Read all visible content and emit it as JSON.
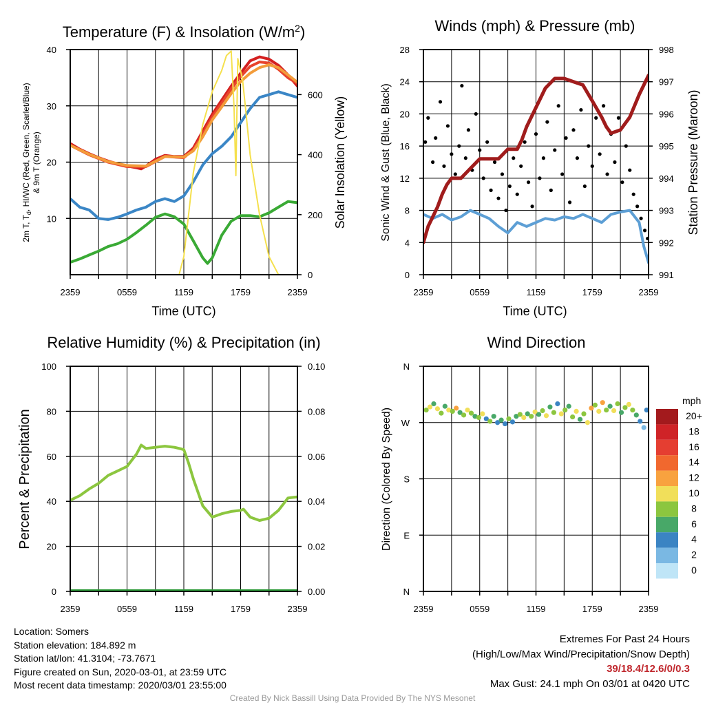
{
  "colors": {
    "temp_red": "#d42020",
    "temp_orange": "#f39c3a",
    "dewpoint_blue": "#3a86c6",
    "temp_green": "#3aaa35",
    "insolation_yellow": "#f5e04d",
    "rh_green": "#8cc63f",
    "precip_green": "#2e9b3a",
    "sustained_wind_blue": "#5d9fd5",
    "gust_black": "#000000",
    "pressure_maroon": "#a01c1c"
  },
  "chart_data": [
    {
      "id": "temp",
      "type": "line",
      "title": "Temperature (F) & Insolation (W/m",
      "title_sup": "2",
      "title_close": ")",
      "xlabel": "Time (UTC)",
      "ylabel_left_1": "2m T, T",
      "ylabel_left_sub": "d",
      "ylabel_left_2": ", HI/WC (Red, Green, Scarlet/Blue)",
      "ylabel_left_3": "& 9m T (Orange)",
      "ylabel_right": "Solar Insolation (Yellow)",
      "x_ticks": [
        "2359",
        "0559",
        "1159",
        "1759",
        "2359"
      ],
      "y_ticks_left": [
        "10",
        "20",
        "30",
        "40"
      ],
      "y_ticks_right": [
        "0",
        "200",
        "400",
        "600"
      ],
      "ylim_left": [
        0,
        40
      ],
      "ylim_right": [
        0,
        750
      ],
      "xlim": [
        0,
        24
      ],
      "grid": true,
      "series": [
        {
          "name": "2m Temperature (Red)",
          "color": "#d42020",
          "axis": "left",
          "x": [
            0,
            1,
            2,
            3,
            4,
            5,
            6,
            7,
            7.5,
            8,
            9,
            10,
            11,
            12,
            13,
            14,
            15,
            16,
            17,
            18,
            19,
            20,
            21,
            22,
            23,
            24
          ],
          "y": [
            23.3,
            22.3,
            21.5,
            20.8,
            20.2,
            19.7,
            19.3,
            19.0,
            18.8,
            19.3,
            20.5,
            21.2,
            21.0,
            21.0,
            22.5,
            25.5,
            28.5,
            31.0,
            33.5,
            35.8,
            38.0,
            38.7,
            38.3,
            37.2,
            35.5,
            33.5
          ]
        },
        {
          "name": "Heat Index / Wind Chill (Scarlet)",
          "color": "#e8442c",
          "axis": "left",
          "x": [
            0,
            2,
            4,
            6,
            8,
            10,
            12,
            13,
            14,
            15,
            16,
            17,
            18,
            19,
            20,
            21,
            22,
            23,
            24
          ],
          "y": [
            23.0,
            21.3,
            20.0,
            19.2,
            19.2,
            21.0,
            20.8,
            22.2,
            25.0,
            28.0,
            30.5,
            33.0,
            35.2,
            37.0,
            37.8,
            37.6,
            36.5,
            35.0,
            34.0
          ]
        },
        {
          "name": "9m Temperature (Orange)",
          "color": "#f39c3a",
          "axis": "left",
          "x": [
            0,
            2,
            4,
            6,
            8,
            10,
            12,
            13,
            14,
            15,
            16,
            17,
            18,
            19,
            20,
            21,
            22,
            23,
            24
          ],
          "y": [
            23.0,
            21.4,
            20.1,
            19.4,
            19.3,
            21.0,
            20.9,
            22.0,
            24.5,
            27.5,
            29.8,
            32.2,
            34.3,
            35.8,
            36.8,
            37.3,
            36.8,
            35.5,
            34.2
          ]
        },
        {
          "name": "Wind Chill (Blue)",
          "color": "#3a86c6",
          "axis": "left",
          "x": [
            0,
            1,
            2,
            3,
            4,
            5,
            6,
            7,
            8,
            9,
            10,
            11,
            12,
            13,
            14,
            15,
            16,
            17,
            18,
            19,
            20,
            21,
            22,
            23,
            24
          ],
          "y": [
            13.5,
            12.0,
            11.5,
            10.0,
            9.8,
            10.2,
            10.8,
            11.5,
            12.0,
            13.0,
            13.5,
            13.0,
            14.0,
            16.5,
            19.5,
            21.5,
            22.8,
            24.5,
            27.0,
            29.5,
            31.5,
            32.0,
            32.5,
            32.0,
            31.5
          ]
        },
        {
          "name": "Dewpoint (Green)",
          "color": "#3aaa35",
          "axis": "left",
          "x": [
            0,
            1,
            2,
            3,
            4,
            5,
            6,
            7,
            8,
            9,
            10,
            11,
            12,
            13,
            14,
            14.5,
            15,
            16,
            17,
            18,
            19,
            20,
            21,
            22,
            23,
            24
          ],
          "y": [
            2.2,
            2.8,
            3.5,
            4.2,
            5.0,
            5.5,
            6.3,
            7.5,
            8.8,
            10.2,
            10.8,
            10.3,
            9.0,
            6.0,
            3.0,
            2.0,
            3.0,
            7.0,
            9.5,
            10.5,
            10.5,
            10.3,
            11.0,
            12.0,
            13.0,
            12.8
          ]
        },
        {
          "name": "Solar Insolation (Yellow)",
          "color": "#f5e04d",
          "axis": "right",
          "x": [
            0,
            11.5,
            12,
            12.5,
            13,
            14,
            15,
            16,
            16.5,
            17,
            17.3,
            17.5,
            17.7,
            18.2,
            18.5,
            19,
            20,
            21,
            22,
            24
          ],
          "y": [
            0,
            0,
            60,
            200,
            340,
            500,
            610,
            680,
            730,
            745,
            560,
            330,
            720,
            650,
            560,
            400,
            200,
            60,
            0,
            0
          ]
        }
      ]
    },
    {
      "id": "wind",
      "type": "line",
      "title": "Winds (mph) & Pressure (mb)",
      "xlabel": "Time (UTC)",
      "ylabel_left": "Sonic Wind & Gust (Blue, Black)",
      "ylabel_right": "Station Pressure (Maroon)",
      "x_ticks": [
        "2359",
        "0559",
        "1159",
        "1759",
        "2359"
      ],
      "y_ticks_left": [
        "0",
        "4",
        "8",
        "12",
        "16",
        "20",
        "24",
        "28"
      ],
      "y_ticks_right": [
        "991",
        "992",
        "993",
        "994",
        "995",
        "996",
        "997",
        "998"
      ],
      "ylim_left": [
        0,
        28
      ],
      "ylim_right": [
        991,
        998
      ],
      "xlim": [
        0,
        24
      ],
      "grid": true,
      "series": [
        {
          "name": "Sustained Wind (Blue)",
          "color": "#5d9fd5",
          "axis": "left",
          "x": [
            0,
            1,
            2,
            3,
            4,
            5,
            6,
            7,
            8,
            9,
            10,
            11,
            12,
            13,
            14,
            15,
            16,
            17,
            18,
            19,
            20,
            21,
            22,
            23,
            23.5,
            24
          ],
          "y": [
            7.5,
            7.0,
            7.5,
            6.8,
            7.2,
            8.0,
            7.5,
            7.0,
            6.0,
            5.2,
            6.5,
            6.0,
            6.5,
            7.0,
            6.8,
            7.2,
            7.0,
            7.5,
            7.0,
            6.5,
            7.5,
            7.8,
            8.0,
            6.5,
            3.5,
            1.5
          ]
        },
        {
          "name": "Gust (Black)",
          "color": "#000000",
          "axis": "left",
          "kind": "scatter",
          "x": [
            0.2,
            0.5,
            1.0,
            1.3,
            1.8,
            2.2,
            2.6,
            3.0,
            3.4,
            3.8,
            4.1,
            4.5,
            4.8,
            5.2,
            5.6,
            6.0,
            6.4,
            6.8,
            7.2,
            7.6,
            8.0,
            8.4,
            8.8,
            9.2,
            9.6,
            10.0,
            10.4,
            10.8,
            11.2,
            11.6,
            12.0,
            12.4,
            12.8,
            13.2,
            13.6,
            14.0,
            14.4,
            14.8,
            15.2,
            15.6,
            16.0,
            16.4,
            16.8,
            17.2,
            17.6,
            18.0,
            18.4,
            18.8,
            19.2,
            19.6,
            20.0,
            20.4,
            20.8,
            21.2,
            21.6,
            22.0,
            22.4,
            22.8,
            23.2,
            23.6,
            23.9
          ],
          "y": [
            16.5,
            19.5,
            14.0,
            17.0,
            21.5,
            13.5,
            18.5,
            15.0,
            12.5,
            16.0,
            23.5,
            14.5,
            18.0,
            13.0,
            20.0,
            15.5,
            12.0,
            16.5,
            10.5,
            14.0,
            9.5,
            12.5,
            8.0,
            11.0,
            14.5,
            10.0,
            13.5,
            16.5,
            11.5,
            8.5,
            17.5,
            12.0,
            14.5,
            19.0,
            10.5,
            15.5,
            21.0,
            12.5,
            17.0,
            9.0,
            18.0,
            14.5,
            20.5,
            11.0,
            16.0,
            13.5,
            19.5,
            15.0,
            21.0,
            12.5,
            17.5,
            14.0,
            19.5,
            11.5,
            16.0,
            13.0,
            10.0,
            8.5,
            7.0,
            5.5,
            4.5
          ]
        },
        {
          "name": "Station Pressure (Maroon)",
          "color": "#a01c1c",
          "axis": "right",
          "x": [
            0,
            0.5,
            1,
            1.5,
            2,
            2.5,
            3,
            4,
            5,
            6,
            7,
            8,
            9,
            10,
            10.5,
            11,
            12,
            13,
            14,
            15,
            16,
            17,
            18,
            19,
            19.5,
            20,
            21,
            22,
            23,
            24
          ],
          "y": [
            992.0,
            992.5,
            992.8,
            993.1,
            993.5,
            993.8,
            994.0,
            994.0,
            994.3,
            994.6,
            994.6,
            994.6,
            994.9,
            994.9,
            995.2,
            995.6,
            996.2,
            996.8,
            997.1,
            997.1,
            997.0,
            996.9,
            996.4,
            995.9,
            995.6,
            995.4,
            995.5,
            995.9,
            996.6,
            997.2
          ]
        }
      ]
    },
    {
      "id": "rh",
      "type": "line",
      "title": "Relative Humidity (%) & Precipitation (in)",
      "xlabel": "",
      "ylabel_left": "Percent & Precipitation",
      "x_ticks": [
        "2359",
        "0559",
        "1159",
        "1759",
        "2359"
      ],
      "y_ticks_left": [
        "0",
        "20",
        "40",
        "60",
        "80",
        "100"
      ],
      "y_ticks_right": [
        "0.00",
        "0.02",
        "0.04",
        "0.06",
        "0.08",
        "0.10"
      ],
      "ylim_left": [
        0,
        100
      ],
      "ylim_right": [
        0,
        0.1
      ],
      "xlim": [
        0,
        24
      ],
      "grid": true,
      "series": [
        {
          "name": "Relative Humidity",
          "color": "#8cc63f",
          "axis": "left",
          "x": [
            0,
            1,
            2,
            3,
            4,
            5,
            6,
            7,
            7.5,
            8,
            9,
            10,
            11,
            12,
            12.5,
            13,
            14,
            15,
            16,
            17,
            18,
            18.3,
            19,
            20,
            21,
            22,
            23,
            24
          ],
          "y": [
            40.5,
            42.5,
            45.5,
            48.0,
            51.5,
            53.5,
            55.5,
            61.0,
            65.0,
            63.5,
            64.0,
            64.5,
            64.0,
            63.0,
            57.0,
            50.0,
            38.0,
            33.0,
            34.5,
            35.5,
            36.0,
            36.5,
            33.0,
            31.5,
            32.5,
            36.0,
            41.5,
            42.0
          ]
        },
        {
          "name": "Precipitation",
          "color": "#2e9b3a",
          "axis": "right",
          "x": [
            0,
            24
          ],
          "y": [
            0,
            0
          ]
        }
      ]
    },
    {
      "id": "dir",
      "type": "scatter",
      "title": "Wind Direction",
      "xlabel": "",
      "ylabel_left": "Direction (Colored By Speed)",
      "x_ticks": [
        "2359",
        "0559",
        "1159",
        "1759",
        "2359"
      ],
      "y_ticks_left": [
        "N",
        "E",
        "S",
        "W",
        "N"
      ],
      "ylim_left": [
        0,
        360
      ],
      "xlim": [
        0,
        24
      ],
      "grid": true,
      "colorbar": {
        "unit": "mph",
        "labels": [
          "20+",
          "18",
          "16",
          "14",
          "12",
          "10",
          "8",
          "6",
          "4",
          "2",
          "0"
        ],
        "colors": [
          "#a31a1d",
          "#cf2327",
          "#e53e31",
          "#f1682e",
          "#f8a23f",
          "#f1df5a",
          "#8cc63f",
          "#48a868",
          "#3b84c3",
          "#7ab8e3",
          "#bfe5f7"
        ]
      },
      "series": [
        {
          "name": "Direction",
          "kind": "scatter",
          "x": [
            0.3,
            0.7,
            1.1,
            1.5,
            1.9,
            2.3,
            2.7,
            3.1,
            3.5,
            3.9,
            4.3,
            4.7,
            5.1,
            5.5,
            5.9,
            6.3,
            6.7,
            7.1,
            7.5,
            7.9,
            8.3,
            8.7,
            9.1,
            9.5,
            9.9,
            10.3,
            10.7,
            11.1,
            11.5,
            11.9,
            12.3,
            12.7,
            13.1,
            13.5,
            13.9,
            14.3,
            14.7,
            15.1,
            15.5,
            15.9,
            16.3,
            16.7,
            17.1,
            17.5,
            17.9,
            18.3,
            18.7,
            19.1,
            19.5,
            19.9,
            20.3,
            20.7,
            21.1,
            21.5,
            21.9,
            22.3,
            22.7,
            23.1,
            23.5,
            23.8
          ],
          "y": [
            290,
            295,
            300,
            292,
            285,
            296,
            290,
            288,
            293,
            286,
            282,
            290,
            285,
            280,
            278,
            284,
            276,
            272,
            280,
            270,
            274,
            268,
            276,
            271,
            280,
            283,
            278,
            284,
            280,
            287,
            283,
            289,
            281,
            295,
            286,
            300,
            284,
            290,
            296,
            279,
            288,
            275,
            284,
            270,
            293,
            298,
            288,
            302,
            290,
            296,
            289,
            300,
            286,
            294,
            299,
            290,
            282,
            272,
            262,
            290
          ],
          "speed": [
            8,
            10,
            6,
            10,
            8,
            6,
            10,
            8,
            12,
            6,
            8,
            10,
            8,
            6,
            8,
            10,
            4,
            8,
            6,
            4,
            6,
            4,
            8,
            4,
            6,
            8,
            10,
            6,
            8,
            10,
            6,
            8,
            10,
            6,
            8,
            4,
            10,
            8,
            6,
            8,
            10,
            6,
            8,
            10,
            12,
            8,
            10,
            12,
            8,
            6,
            10,
            8,
            6,
            8,
            10,
            8,
            6,
            4,
            2,
            4
          ]
        }
      ]
    }
  ],
  "info_left": {
    "location": "Location: Somers",
    "elevation": "Station elevation: 184.892 m",
    "latlon": "Station lat/lon: 41.3104; -73.7671",
    "created": "Figure created on Sun, 2020-03-01, at 23:59 UTC",
    "recent": "Most recent data timestamp: 2020/03/01 23:55:00"
  },
  "info_right": {
    "title": "Extremes For Past 24 Hours",
    "subtitle": "(High/Low/Max Wind/Precipitation/Snow Depth)",
    "values": "39/18.4/12.6/0/0.3",
    "max_gust": "Max Gust: 24.1 mph On 03/01 at 0420 UTC"
  },
  "credit": "Created By Nick Bassill Using Data Provided By The NYS Mesonet"
}
